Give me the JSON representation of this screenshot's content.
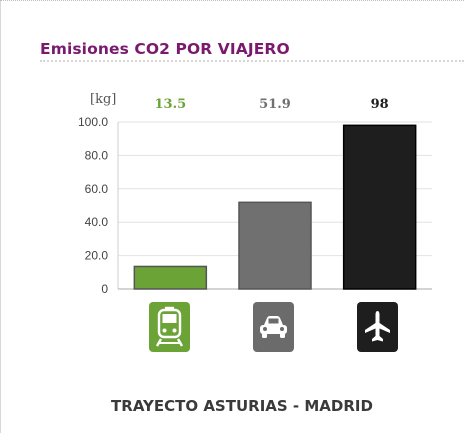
{
  "header": {
    "title": "Emisiones CO2 POR VIAJERO"
  },
  "chart_data": {
    "type": "bar",
    "unit_label": "[kg]",
    "categories": [
      "tren",
      "coche",
      "avión"
    ],
    "values": [
      13.5,
      51.9,
      98
    ],
    "value_labels": [
      "13.5",
      "51.9",
      "98"
    ],
    "ylim": [
      0,
      100
    ],
    "yticks": [
      "0",
      "20.0",
      "40.0",
      "60.0",
      "80.0",
      "100.0"
    ],
    "colors": [
      "#6ca336",
      "#707070",
      "#1e1e1e"
    ],
    "label_colors": [
      "#6ca336",
      "#707070",
      "#1e1e1e"
    ],
    "grid": true
  },
  "icons": [
    {
      "name": "train-icon",
      "color": "#6ca336"
    },
    {
      "name": "car-icon",
      "color": "#6b6b6b"
    },
    {
      "name": "plane-icon",
      "color": "#1e1e1e"
    }
  ],
  "footer": {
    "route": "TRAYECTO ASTURIAS - MADRID"
  }
}
